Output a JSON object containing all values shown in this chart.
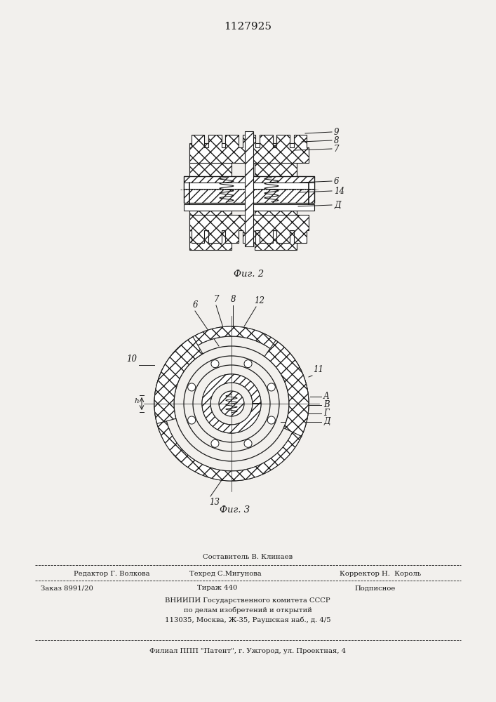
{
  "title": "1127925",
  "fig2_caption": "Фиг. 2",
  "fig3_caption": "Фиг. 3",
  "bg_color": "#f2f0ed",
  "line_color": "#1a1a1a",
  "footer": {
    "line1_center": "Составитель В. Клинаев",
    "line2_left": "Редактор Г. Волкова",
    "line2_center": "Техред С.Мигунова",
    "line2_right": "Корректор Н.  Король",
    "line3_left": "Заказ 8991/20",
    "line3_center": "Тираж 440",
    "line3_right": "Подписное",
    "line4": "ВНИИПИ Государственного комитета СССР",
    "line5": "по делам изобретений и открытий",
    "line6": "113035, Москва, Ж-35, Раушская наб., д. 4/5",
    "line7": "Филиал ППП \"Патент\", г. Ужгород, ул. Проектная, 4"
  }
}
